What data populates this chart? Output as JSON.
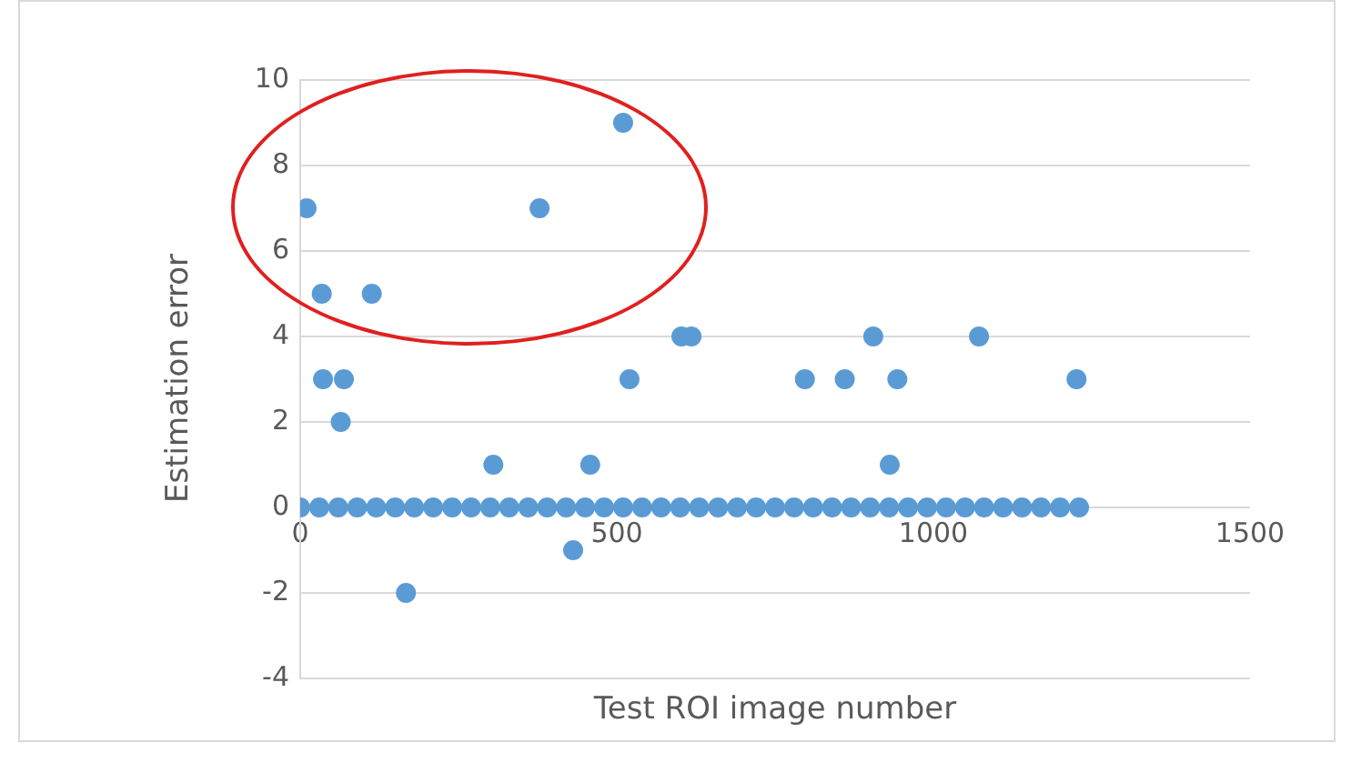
{
  "chart_data": {
    "type": "scatter",
    "xlabel": "Test ROI image number",
    "ylabel": "Estimation error",
    "xlim": [
      0,
      1500
    ],
    "xticks": [
      0,
      500,
      1000,
      1500
    ],
    "ylim": [
      -4,
      10
    ],
    "yticks": [
      -4,
      -2,
      0,
      2,
      4,
      6,
      8,
      10
    ],
    "grid": "y",
    "marker": "circle",
    "series": [
      {
        "color": "#5b9bd5",
        "x": [
          10,
          34,
          36,
          69,
          64,
          113,
          167,
          305,
          378,
          431,
          458,
          510,
          520,
          602,
          618,
          797,
          860,
          905,
          943,
          931,
          1072,
          1226,
          0,
          30,
          60,
          90,
          120,
          150,
          180,
          210,
          240,
          270,
          300,
          330,
          360,
          390,
          420,
          450,
          480,
          510,
          540,
          570,
          600,
          630,
          660,
          690,
          720,
          750,
          780,
          810,
          840,
          870,
          900,
          930,
          960,
          990,
          1020,
          1050,
          1080,
          1110,
          1140,
          1170,
          1200,
          1230
        ],
        "values": [
          7,
          5,
          3,
          3,
          2,
          5,
          -2,
          1,
          7,
          -1,
          1,
          9,
          3,
          4,
          4,
          3,
          3,
          4,
          3,
          1,
          4,
          3,
          0,
          0,
          0,
          0,
          0,
          0,
          0,
          0,
          0,
          0,
          0,
          0,
          0,
          0,
          0,
          0,
          0,
          0,
          0,
          0,
          0,
          0,
          0,
          0,
          0,
          0,
          0,
          0,
          0,
          0,
          0,
          0,
          0,
          0,
          0,
          0,
          0,
          0,
          0,
          0,
          0,
          0
        ]
      }
    ]
  }
}
